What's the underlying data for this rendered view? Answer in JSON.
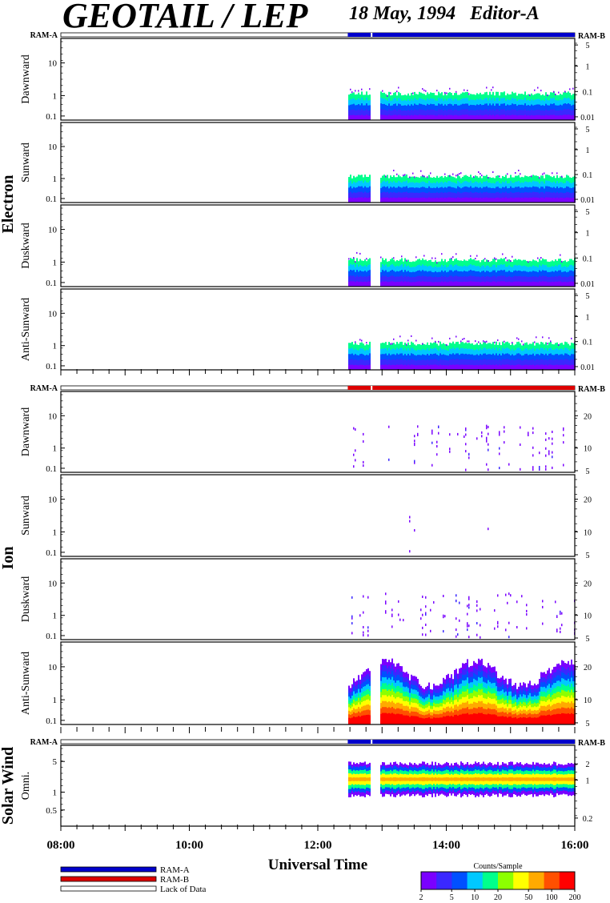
{
  "header": {
    "title": "GEOTAIL / LEP",
    "date": "18 May, 1994",
    "editor": "Editor-A"
  },
  "colors": {
    "ram_a": "#0000cc",
    "ram_b": "#dd0000",
    "lack_of_data": "#ffffff"
  },
  "chart_data": {
    "type": "heatmap",
    "xlabel": "Universal Time",
    "x_range": [
      "08:00",
      "16:00"
    ],
    "x_ticks": [
      "08:00",
      "10:00",
      "12:00",
      "14:00",
      "16:00"
    ],
    "data_start": "12:28",
    "data_gaps": [
      [
        "12:48",
        "12:58"
      ]
    ],
    "groups": [
      {
        "name": "Electron",
        "ram_left": "RAM-A",
        "ram_right": "RAM-B",
        "ram_mode": "RAM-A",
        "panels": [
          {
            "label": "Dawnward",
            "y_ticks": [
              "0.1",
              "1",
              "10"
            ],
            "right_ticks": [
              "0.01",
              "0.1",
              "1",
              "5"
            ]
          },
          {
            "label": "Sunward",
            "y_ticks": [
              "0.1",
              "1",
              "10"
            ],
            "right_ticks": [
              "0.01",
              "0.1",
              "1",
              "5"
            ]
          },
          {
            "label": "Duskward",
            "y_ticks": [
              "0.1",
              "1",
              "10"
            ],
            "right_ticks": [
              "0.01",
              "0.1",
              "1",
              "5"
            ]
          },
          {
            "label": "Anti-Sunward",
            "y_ticks": [
              "0.1",
              "1",
              "10"
            ],
            "right_ticks": [
              "0.01",
              "0.1",
              "1",
              "5"
            ]
          }
        ]
      },
      {
        "name": "Ion",
        "ram_left": "RAM-A",
        "ram_right": "RAM-B",
        "ram_mode": "RAM-B",
        "panels": [
          {
            "label": "Dawnward",
            "y_ticks": [
              "0.1",
              "1",
              "10"
            ],
            "right_ticks": [
              "5",
              "10",
              "20"
            ]
          },
          {
            "label": "Sunward",
            "y_ticks": [
              "0.1",
              "1",
              "10"
            ],
            "right_ticks": [
              "5",
              "10",
              "20"
            ]
          },
          {
            "label": "Duskward",
            "y_ticks": [
              "0.1",
              "1",
              "10"
            ],
            "right_ticks": [
              "5",
              "10",
              "20"
            ]
          },
          {
            "label": "Anti-Sunward",
            "y_ticks": [
              "0.1",
              "1",
              "10"
            ],
            "right_ticks": [
              "5",
              "10",
              "20"
            ]
          }
        ]
      },
      {
        "name": "Solar Wind",
        "ram_left": "RAM-A",
        "ram_right": "RAM-B",
        "ram_mode": "RAM-A",
        "panels": [
          {
            "label": "Omni.",
            "y_ticks": [
              "0.5",
              "1",
              "5"
            ],
            "right_ticks": [
              "0.2",
              "1",
              "2"
            ]
          }
        ]
      }
    ],
    "legend": {
      "items": [
        "RAM-A",
        "RAM-B",
        "Lack of Data"
      ]
    },
    "colorbar": {
      "title": "Counts/Sample",
      "ticks": [
        "2",
        "5",
        "10",
        "20",
        "50",
        "100",
        "200"
      ],
      "colors": [
        "#7a00ff",
        "#3a28ff",
        "#0050ff",
        "#00c8ff",
        "#00ff8c",
        "#8cff00",
        "#ffff00",
        "#ffaa00",
        "#ff5000",
        "#ff0000"
      ]
    }
  }
}
